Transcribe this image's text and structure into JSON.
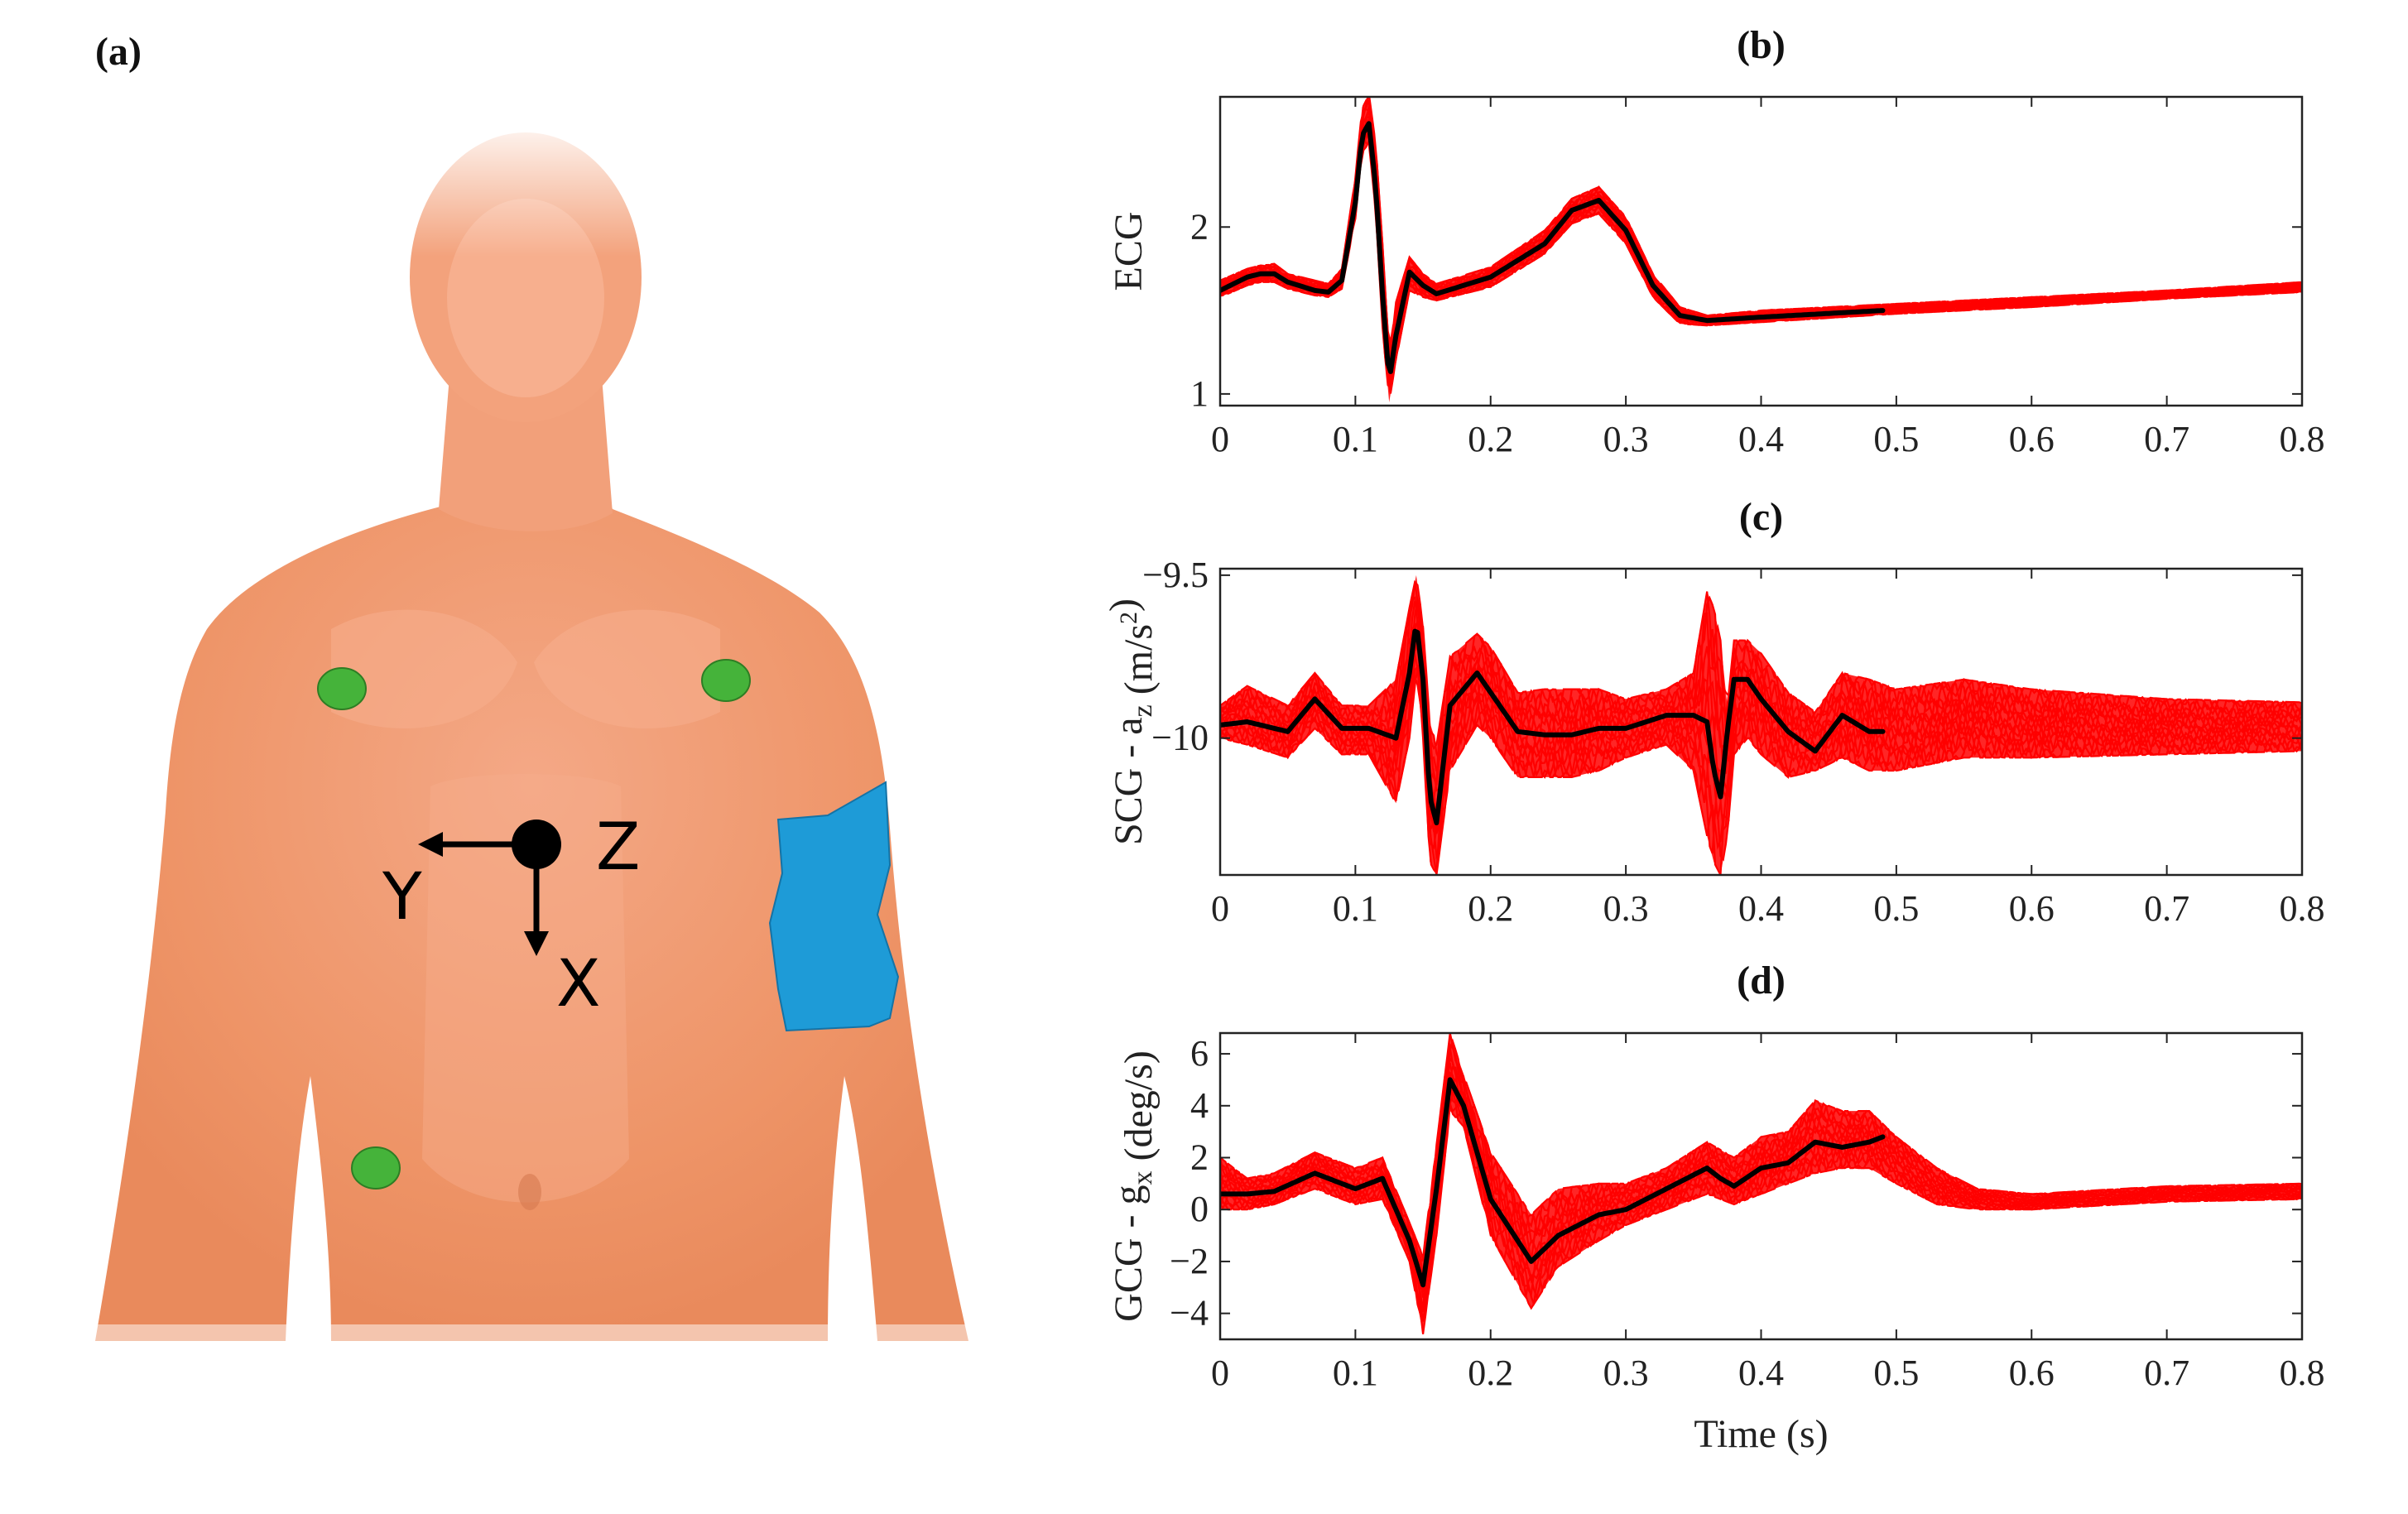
{
  "figure": {
    "panel_labels": {
      "a": "(a)",
      "b": "(b)",
      "c": "(c)",
      "d": "(d)"
    },
    "body_diagram": {
      "axes_labels": {
        "z": "Z",
        "y": "Y",
        "x": "X"
      },
      "colors": {
        "skin": "#EE9467",
        "electrode": "#45B33A",
        "armband": "#1E9BD7",
        "axis": "#000000"
      }
    },
    "colors": {
      "trials": "#FF0000",
      "mean": "#000000"
    }
  },
  "chart_data": [
    {
      "id": "b",
      "type": "line",
      "title": "(b)",
      "xlabel": "Time (s)",
      "ylabel": "ECG",
      "xlim": [
        0,
        0.8
      ],
      "ylim": [
        0.93,
        2.78
      ],
      "xticks": [
        0,
        0.1,
        0.2,
        0.3,
        0.4,
        0.5,
        0.6,
        0.7,
        0.8
      ],
      "xtick_labels": [
        "0",
        "0.1",
        "0.2",
        "0.3",
        "0.4",
        "0.5",
        "0.6",
        "0.7",
        "0.8"
      ],
      "yticks": [
        1,
        2
      ],
      "ytick_labels": [
        "1",
        "2"
      ],
      "grid": false,
      "series": [
        {
          "role": "trials-envelope-upper",
          "x": [
            0,
            0.02,
            0.03,
            0.04,
            0.05,
            0.07,
            0.08,
            0.09,
            0.1,
            0.105,
            0.11,
            0.115,
            0.12,
            0.125,
            0.13,
            0.14,
            0.15,
            0.16,
            0.2,
            0.24,
            0.26,
            0.28,
            0.3,
            0.32,
            0.34,
            0.36,
            0.4,
            0.5,
            0.6,
            0.7,
            0.8
          ],
          "y": [
            1.68,
            1.75,
            1.77,
            1.78,
            1.72,
            1.68,
            1.66,
            1.75,
            2.3,
            2.72,
            2.8,
            2.5,
            1.9,
            1.25,
            1.55,
            1.82,
            1.72,
            1.66,
            1.76,
            1.98,
            2.17,
            2.24,
            2.06,
            1.72,
            1.52,
            1.47,
            1.5,
            1.54,
            1.58,
            1.62,
            1.67
          ]
        },
        {
          "role": "trials-envelope-lower",
          "x": [
            0,
            0.02,
            0.03,
            0.04,
            0.05,
            0.07,
            0.08,
            0.09,
            0.1,
            0.105,
            0.11,
            0.115,
            0.12,
            0.125,
            0.13,
            0.14,
            0.15,
            0.16,
            0.2,
            0.24,
            0.26,
            0.28,
            0.3,
            0.32,
            0.34,
            0.36,
            0.4,
            0.5,
            0.6,
            0.7,
            0.8
          ],
          "y": [
            1.58,
            1.65,
            1.67,
            1.67,
            1.63,
            1.59,
            1.58,
            1.63,
            2.05,
            2.45,
            2.5,
            2.1,
            1.4,
            0.95,
            1.2,
            1.62,
            1.58,
            1.56,
            1.64,
            1.84,
            2.02,
            2.08,
            1.9,
            1.58,
            1.42,
            1.41,
            1.43,
            1.48,
            1.52,
            1.57,
            1.61
          ]
        },
        {
          "name": "",
          "role": "mean",
          "x": [
            0,
            0.02,
            0.03,
            0.04,
            0.05,
            0.07,
            0.08,
            0.09,
            0.1,
            0.105,
            0.11,
            0.115,
            0.12,
            0.125,
            0.13,
            0.14,
            0.15,
            0.16,
            0.2,
            0.24,
            0.26,
            0.28,
            0.3,
            0.32,
            0.34,
            0.36,
            0.4,
            0.49
          ],
          "y": [
            1.62,
            1.7,
            1.72,
            1.72,
            1.67,
            1.62,
            1.61,
            1.68,
            2.15,
            2.55,
            2.62,
            2.25,
            1.6,
            1.08,
            1.35,
            1.73,
            1.65,
            1.6,
            1.7,
            1.9,
            2.1,
            2.16,
            1.98,
            1.65,
            1.47,
            1.44,
            1.46,
            1.5
          ]
        }
      ]
    },
    {
      "id": "c",
      "type": "line",
      "title": "(c)",
      "xlabel": "Time (s)",
      "ylabel": "SCG - a_z (m/s^2)",
      "xlim": [
        0,
        0.8
      ],
      "ylim": [
        -10.42,
        -9.48
      ],
      "xticks": [
        0,
        0.1,
        0.2,
        0.3,
        0.4,
        0.5,
        0.6,
        0.7,
        0.8
      ],
      "xtick_labels": [
        "0",
        "0.1",
        "0.2",
        "0.3",
        "0.4",
        "0.5",
        "0.6",
        "0.7",
        "0.8"
      ],
      "yticks": [
        -10,
        -9.5
      ],
      "ytick_labels": [
        "−10",
        "−9.5"
      ],
      "grid": false,
      "series": [
        {
          "role": "trials-envelope-upper",
          "x": [
            0,
            0.02,
            0.05,
            0.07,
            0.09,
            0.11,
            0.13,
            0.14,
            0.145,
            0.15,
            0.155,
            0.16,
            0.17,
            0.19,
            0.2,
            0.22,
            0.24,
            0.26,
            0.28,
            0.3,
            0.33,
            0.35,
            0.36,
            0.365,
            0.37,
            0.375,
            0.38,
            0.39,
            0.4,
            0.42,
            0.44,
            0.46,
            0.48,
            0.5,
            0.55,
            0.6,
            0.7,
            0.8
          ],
          "y": [
            -9.9,
            -9.84,
            -9.9,
            -9.8,
            -9.9,
            -9.9,
            -9.82,
            -9.6,
            -9.5,
            -9.65,
            -9.95,
            -10.02,
            -9.75,
            -9.68,
            -9.72,
            -9.86,
            -9.85,
            -9.85,
            -9.85,
            -9.88,
            -9.85,
            -9.8,
            -9.55,
            -9.6,
            -9.7,
            -9.9,
            -9.7,
            -9.7,
            -9.74,
            -9.86,
            -9.92,
            -9.8,
            -9.82,
            -9.85,
            -9.82,
            -9.85,
            -9.88,
            -9.89
          ]
        },
        {
          "role": "trials-envelope-lower",
          "x": [
            0,
            0.02,
            0.05,
            0.07,
            0.09,
            0.11,
            0.13,
            0.14,
            0.145,
            0.15,
            0.155,
            0.16,
            0.17,
            0.19,
            0.2,
            0.22,
            0.24,
            0.26,
            0.28,
            0.3,
            0.33,
            0.35,
            0.36,
            0.365,
            0.37,
            0.375,
            0.38,
            0.39,
            0.4,
            0.42,
            0.44,
            0.46,
            0.48,
            0.5,
            0.55,
            0.6,
            0.7,
            0.8
          ],
          "y": [
            -10.0,
            -10.02,
            -10.06,
            -9.97,
            -10.05,
            -10.05,
            -10.2,
            -10.0,
            -9.8,
            -10.0,
            -10.38,
            -10.42,
            -10.1,
            -9.96,
            -10.0,
            -10.12,
            -10.12,
            -10.12,
            -10.1,
            -10.06,
            -10.02,
            -10.1,
            -10.3,
            -10.38,
            -10.42,
            -10.3,
            -10.05,
            -10.0,
            -10.05,
            -10.12,
            -10.1,
            -10.06,
            -10.1,
            -10.1,
            -10.06,
            -10.06,
            -10.05,
            -10.04
          ]
        },
        {
          "name": "",
          "role": "mean",
          "x": [
            0,
            0.02,
            0.05,
            0.07,
            0.09,
            0.11,
            0.13,
            0.14,
            0.145,
            0.15,
            0.155,
            0.16,
            0.17,
            0.19,
            0.2,
            0.22,
            0.24,
            0.26,
            0.28,
            0.3,
            0.33,
            0.35,
            0.36,
            0.365,
            0.37,
            0.375,
            0.38,
            0.39,
            0.4,
            0.42,
            0.44,
            0.46,
            0.48,
            0.49
          ],
          "y": [
            -9.96,
            -9.95,
            -9.98,
            -9.88,
            -9.97,
            -9.97,
            -10.0,
            -9.8,
            -9.64,
            -9.82,
            -10.18,
            -10.26,
            -9.9,
            -9.8,
            -9.86,
            -9.98,
            -9.99,
            -9.99,
            -9.97,
            -9.97,
            -9.93,
            -9.93,
            -9.95,
            -10.1,
            -10.18,
            -9.98,
            -9.82,
            -9.82,
            -9.88,
            -9.98,
            -10.04,
            -9.93,
            -9.98,
            -9.98
          ]
        }
      ]
    },
    {
      "id": "d",
      "type": "line",
      "title": "(d)",
      "xlabel": "Time (s)",
      "ylabel": "GCG - g_x (deg/s)",
      "xlim": [
        0,
        0.8
      ],
      "ylim": [
        -5,
        6.8
      ],
      "xticks": [
        0,
        0.1,
        0.2,
        0.3,
        0.4,
        0.5,
        0.6,
        0.7,
        0.8
      ],
      "xtick_labels": [
        "0",
        "0.1",
        "0.2",
        "0.3",
        "0.4",
        "0.5",
        "0.6",
        "0.7",
        "0.8"
      ],
      "yticks": [
        -4,
        -2,
        0,
        2,
        4,
        6
      ],
      "ytick_labels": [
        "−4",
        "−2",
        "0",
        "2",
        "4",
        "6"
      ],
      "grid": false,
      "series": [
        {
          "role": "trials-envelope-upper",
          "x": [
            0,
            0.02,
            0.04,
            0.07,
            0.1,
            0.12,
            0.14,
            0.15,
            0.16,
            0.17,
            0.18,
            0.2,
            0.23,
            0.25,
            0.28,
            0.3,
            0.33,
            0.36,
            0.38,
            0.4,
            0.42,
            0.44,
            0.46,
            0.48,
            0.5,
            0.53,
            0.56,
            0.6,
            0.7,
            0.8
          ],
          "y": [
            2.0,
            1.2,
            1.4,
            2.2,
            1.6,
            2.0,
            -0.5,
            -1.8,
            2.5,
            6.8,
            5.2,
            2.2,
            -0.2,
            0.8,
            1.0,
            1.0,
            1.6,
            2.6,
            2.0,
            2.8,
            3.0,
            4.2,
            3.8,
            3.8,
            2.8,
            1.6,
            0.8,
            0.6,
            0.9,
            1.0
          ]
        },
        {
          "role": "trials-envelope-lower",
          "x": [
            0,
            0.02,
            0.04,
            0.07,
            0.1,
            0.12,
            0.14,
            0.15,
            0.16,
            0.17,
            0.18,
            0.2,
            0.23,
            0.25,
            0.28,
            0.3,
            0.33,
            0.36,
            0.38,
            0.4,
            0.42,
            0.44,
            0.46,
            0.48,
            0.5,
            0.53,
            0.56,
            0.6,
            0.7,
            0.8
          ],
          "y": [
            0.0,
            0.0,
            0.2,
            0.8,
            0.2,
            0.4,
            -2.0,
            -4.8,
            -1.0,
            3.8,
            3.2,
            -1.0,
            -3.8,
            -2.2,
            -1.2,
            -0.6,
            0.0,
            0.6,
            0.2,
            0.6,
            1.0,
            1.4,
            1.6,
            1.6,
            1.0,
            0.2,
            0.0,
            0.0,
            0.3,
            0.4
          ]
        },
        {
          "name": "",
          "role": "mean",
          "x": [
            0,
            0.02,
            0.04,
            0.07,
            0.1,
            0.12,
            0.14,
            0.15,
            0.16,
            0.17,
            0.18,
            0.2,
            0.23,
            0.25,
            0.28,
            0.3,
            0.33,
            0.36,
            0.37,
            0.38,
            0.4,
            0.42,
            0.44,
            0.46,
            0.48,
            0.49
          ],
          "y": [
            0.6,
            0.6,
            0.7,
            1.4,
            0.8,
            1.2,
            -1.2,
            -2.9,
            0.8,
            5.0,
            4.0,
            0.4,
            -2.0,
            -1.0,
            -0.2,
            0.0,
            0.8,
            1.6,
            1.2,
            0.9,
            1.6,
            1.8,
            2.6,
            2.4,
            2.6,
            2.8
          ]
        }
      ]
    }
  ]
}
